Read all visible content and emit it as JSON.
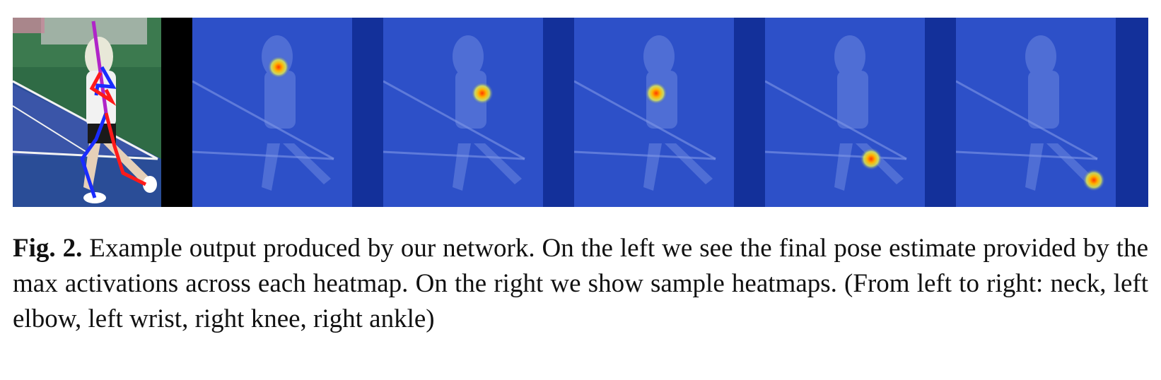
{
  "figure": {
    "panels": [
      {
        "id": "pose-estimate",
        "kind": "pose-overlay"
      },
      {
        "id": "neck",
        "kind": "heatmap"
      },
      {
        "id": "left-elbow",
        "kind": "heatmap"
      },
      {
        "id": "left-wrist",
        "kind": "heatmap"
      },
      {
        "id": "right-knee",
        "kind": "heatmap"
      },
      {
        "id": "right-ankle",
        "kind": "heatmap"
      }
    ],
    "colors": {
      "court_green": "#2f6b45",
      "court_blue": "#2e3f9f",
      "heatmap_overlay": "#2d50c8",
      "heatmap_dark_band": "#13309a",
      "limb_red": "#ff1a1a",
      "limb_blue": "#1a2cff",
      "limb_purple": "#b024c8"
    }
  },
  "caption": {
    "label": "Fig. 2.",
    "text": " Example output produced by our network. On the left we see the final pose estimate provided by the max activations across each heatmap. On the right we show sample heatmaps. (From left to right: neck, left elbow, left wrist, right knee, right ankle)"
  }
}
